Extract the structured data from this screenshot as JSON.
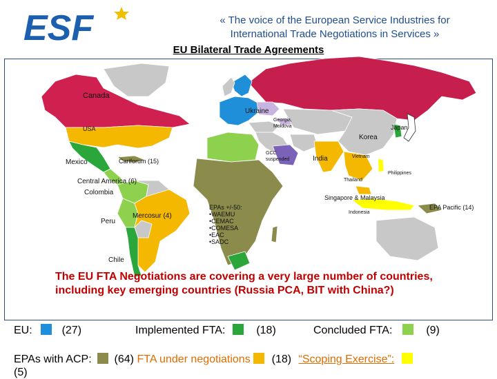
{
  "header": {
    "logo_text": "ESF",
    "tagline_line1": "« The voice of the European Service Industries for",
    "tagline_line2": "International Trade Negotiations in Services »"
  },
  "title": "EU Bilateral Trade Agreements",
  "map_labels": {
    "canada": "Canada",
    "usa": "USA",
    "mexico": "Mexico",
    "cariforum": "Cariforum (15)",
    "central_america": "Central America (6)",
    "colombia": "Colombia",
    "peru": "Peru",
    "mercosur": "Mercosur (4)",
    "chile": "Chile",
    "ukraine": "Ukraine",
    "georgia_moldova_1": "Georgia,",
    "georgia_moldova_2": "Moldova",
    "gcc_1": "GCC",
    "gcc_2": "suspended",
    "india": "India",
    "korea": "Korea",
    "japan": "Japan",
    "vietnam": "Vietnam",
    "philippines": "Philippines",
    "thailand": "Thailand",
    "singapore_malaysia": "Singapore & Malaysia",
    "indonesia": "Indonesia",
    "epa_pacific": "EPA Pacific (14)",
    "epas_africa": [
      "EPAs +/-50:",
      "•WAEMU",
      "•CEMAC",
      "•COMESA",
      "•EAC",
      "•SADC"
    ]
  },
  "message": "The EU FTA Negotiations are covering a very large number of countries, including key emerging countries (Russia PCA, BIT with China?)",
  "legend": {
    "eu_label": "EU:",
    "eu_count": "(27)",
    "implemented_label": "Implemented FTA:",
    "implemented_count": "(18)",
    "concluded_label": "Concluded FTA:",
    "concluded_count": "(9)",
    "epas_label": "EPAs with ACP:",
    "epas_count": "(64)",
    "negotiations_label": "FTA under negotiations",
    "negotiations_count": "(18)",
    "scoping_label": "“Scoping Exercise”:",
    "scoping_count": "(5)"
  },
  "colors": {
    "eu": "#1e8fd8",
    "implemented": "#2aa63a",
    "concluded": "#8dd14f",
    "epas": "#8b8b4b",
    "negotiations": "#f5b800",
    "scoping": "#ffff00",
    "other": "#c8c8c8",
    "russia": "#c61f4e",
    "canada": "#d02050",
    "ukraine": "#c8b4e0",
    "gcc": "#7a62b8"
  }
}
